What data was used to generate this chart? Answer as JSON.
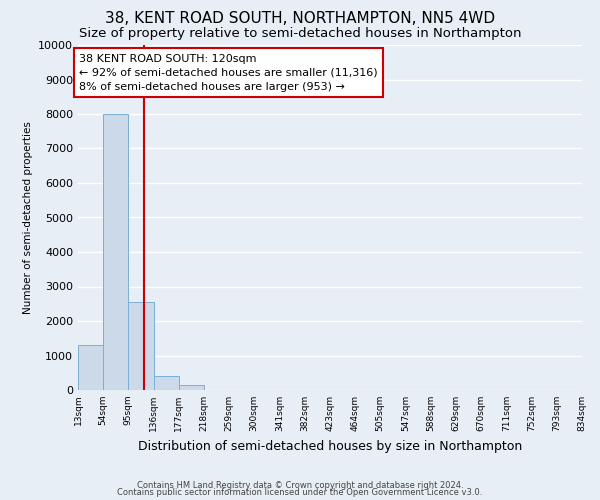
{
  "title": "38, KENT ROAD SOUTH, NORTHAMPTON, NN5 4WD",
  "subtitle": "Size of property relative to semi-detached houses in Northampton",
  "xlabel": "Distribution of semi-detached houses by size in Northampton",
  "ylabel": "Number of semi-detached properties",
  "bar_edges": [
    13,
    54,
    95,
    136,
    177,
    218,
    259,
    300,
    341,
    382,
    423,
    464,
    505,
    547,
    588,
    629,
    670,
    711,
    752,
    793,
    834
  ],
  "bar_heights": [
    1300,
    8000,
    2550,
    400,
    150,
    0,
    0,
    0,
    0,
    0,
    0,
    0,
    0,
    0,
    0,
    0,
    0,
    0,
    0,
    0
  ],
  "bar_color": "#ccd9e8",
  "bar_edgecolor": "#7aafd4",
  "property_line_x": 120,
  "property_line_color": "#cc0000",
  "ylim": [
    0,
    10000
  ],
  "yticks": [
    0,
    1000,
    2000,
    3000,
    4000,
    5000,
    6000,
    7000,
    8000,
    9000,
    10000
  ],
  "annotation_title": "38 KENT ROAD SOUTH: 120sqm",
  "annotation_line1": "← 92% of semi-detached houses are smaller (11,316)",
  "annotation_line2": "8% of semi-detached houses are larger (953) →",
  "annotation_box_edgecolor": "#cc0000",
  "annotation_box_facecolor": "#ffffff",
  "footer_line1": "Contains HM Land Registry data © Crown copyright and database right 2024.",
  "footer_line2": "Contains public sector information licensed under the Open Government Licence v3.0.",
  "background_color": "#e8eef5",
  "plot_background_color": "#e8eef5",
  "grid_color": "#ffffff",
  "title_fontsize": 11,
  "subtitle_fontsize": 9.5,
  "tick_labels": [
    "13sqm",
    "54sqm",
    "95sqm",
    "136sqm",
    "177sqm",
    "218sqm",
    "259sqm",
    "300sqm",
    "341sqm",
    "382sqm",
    "423sqm",
    "464sqm",
    "505sqm",
    "547sqm",
    "588sqm",
    "629sqm",
    "670sqm",
    "711sqm",
    "752sqm",
    "793sqm",
    "834sqm"
  ]
}
